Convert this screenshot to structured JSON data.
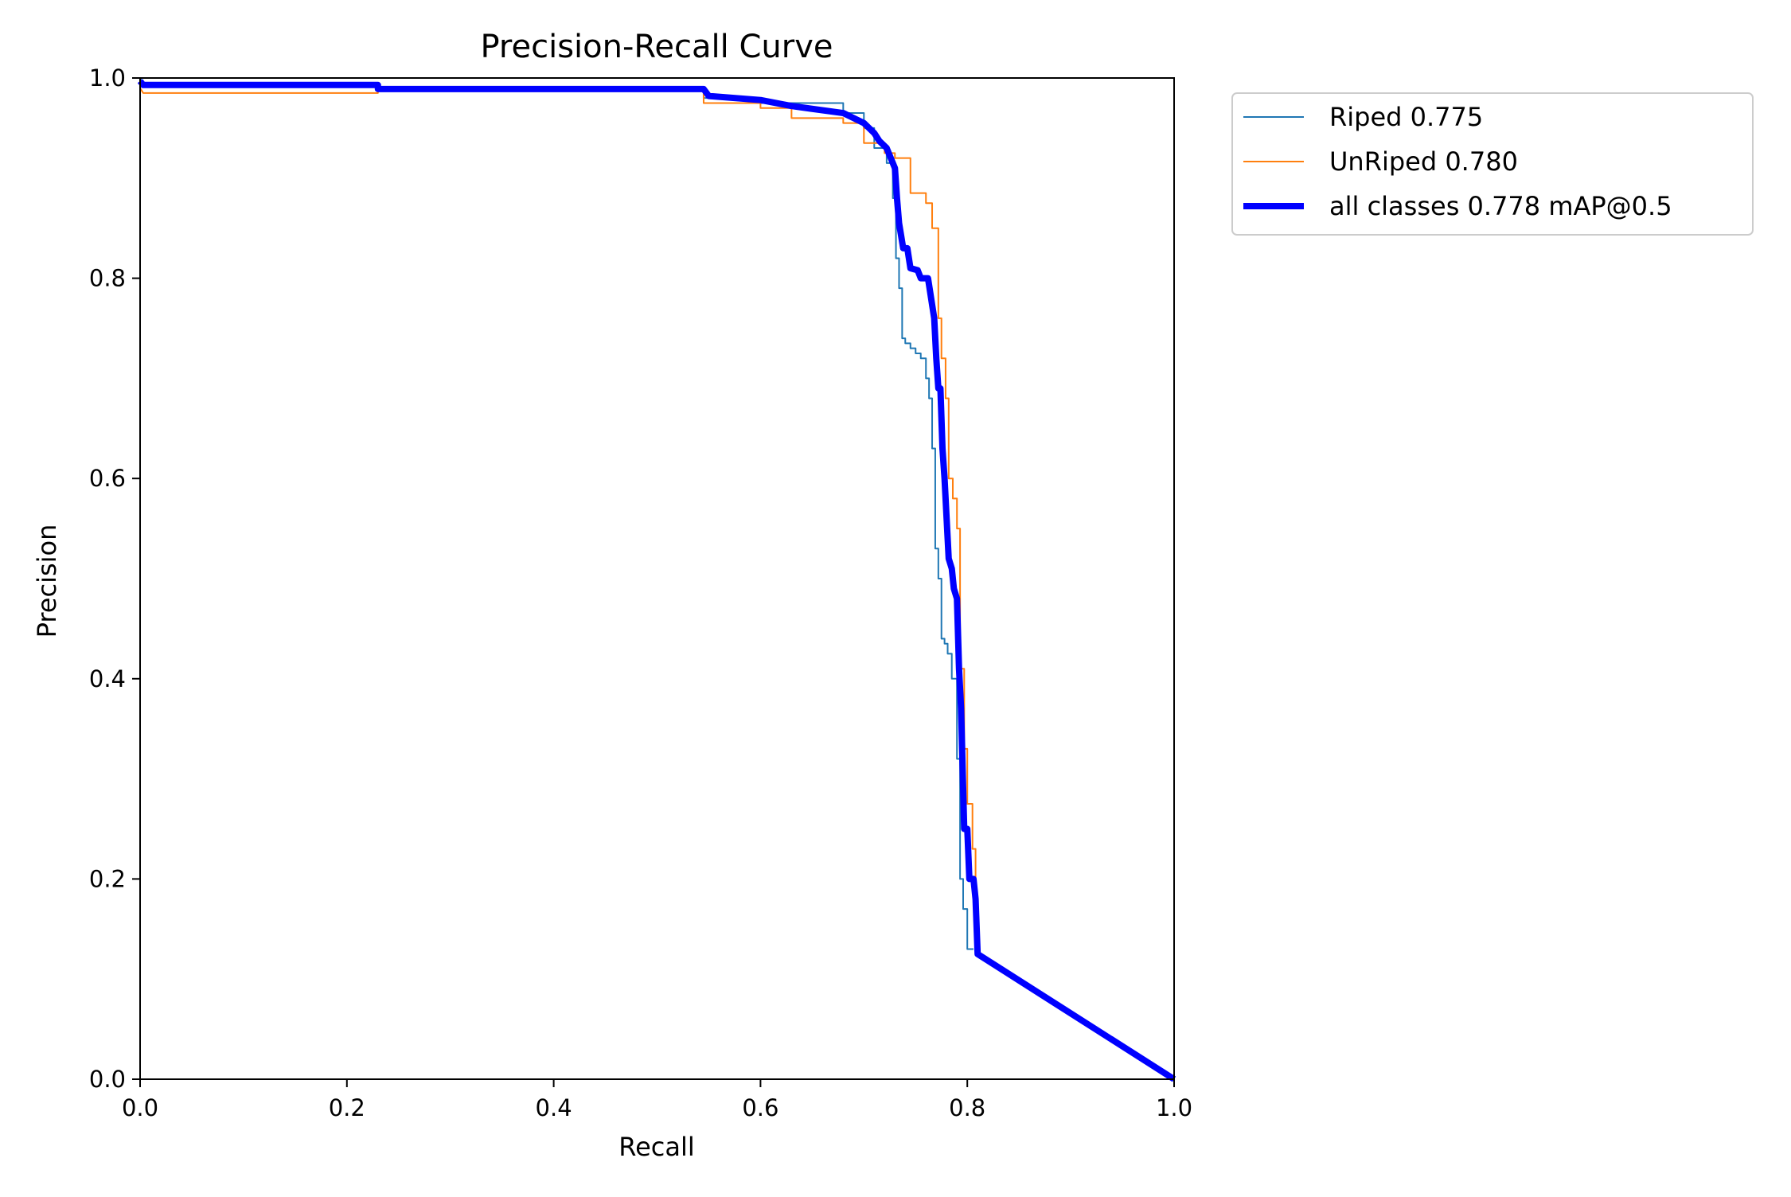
{
  "chart_data": {
    "type": "line",
    "title": "Precision-Recall Curve",
    "xlabel": "Recall",
    "ylabel": "Precision",
    "xlim": [
      0,
      1
    ],
    "ylim": [
      0,
      1
    ],
    "x_ticks": [
      "0.0",
      "0.2",
      "0.4",
      "0.6",
      "0.8",
      "1.0"
    ],
    "y_ticks": [
      "0.0",
      "0.2",
      "0.4",
      "0.6",
      "0.8",
      "1.0"
    ],
    "grid": false,
    "legend_position": "outside-top-right",
    "series": [
      {
        "name": "Riped 0.775",
        "color": "#1f77b4",
        "style": "step",
        "points": [
          [
            0.0,
            1.0
          ],
          [
            0.003,
            0.995
          ],
          [
            0.23,
            0.995
          ],
          [
            0.23,
            0.99
          ],
          [
            0.545,
            0.99
          ],
          [
            0.545,
            0.98
          ],
          [
            0.6,
            0.98
          ],
          [
            0.6,
            0.975
          ],
          [
            0.68,
            0.975
          ],
          [
            0.68,
            0.965
          ],
          [
            0.7,
            0.965
          ],
          [
            0.7,
            0.95
          ],
          [
            0.71,
            0.95
          ],
          [
            0.71,
            0.93
          ],
          [
            0.722,
            0.93
          ],
          [
            0.722,
            0.915
          ],
          [
            0.728,
            0.915
          ],
          [
            0.728,
            0.88
          ],
          [
            0.731,
            0.88
          ],
          [
            0.731,
            0.82
          ],
          [
            0.734,
            0.82
          ],
          [
            0.734,
            0.79
          ],
          [
            0.737,
            0.79
          ],
          [
            0.737,
            0.74
          ],
          [
            0.74,
            0.74
          ],
          [
            0.74,
            0.735
          ],
          [
            0.745,
            0.735
          ],
          [
            0.745,
            0.73
          ],
          [
            0.75,
            0.73
          ],
          [
            0.75,
            0.725
          ],
          [
            0.755,
            0.725
          ],
          [
            0.755,
            0.72
          ],
          [
            0.76,
            0.72
          ],
          [
            0.76,
            0.7
          ],
          [
            0.763,
            0.7
          ],
          [
            0.763,
            0.68
          ],
          [
            0.766,
            0.68
          ],
          [
            0.766,
            0.63
          ],
          [
            0.769,
            0.63
          ],
          [
            0.769,
            0.53
          ],
          [
            0.772,
            0.53
          ],
          [
            0.772,
            0.5
          ],
          [
            0.775,
            0.5
          ],
          [
            0.775,
            0.44
          ],
          [
            0.778,
            0.44
          ],
          [
            0.778,
            0.435
          ],
          [
            0.781,
            0.435
          ],
          [
            0.781,
            0.425
          ],
          [
            0.785,
            0.425
          ],
          [
            0.785,
            0.4
          ],
          [
            0.79,
            0.4
          ],
          [
            0.79,
            0.32
          ],
          [
            0.793,
            0.32
          ],
          [
            0.793,
            0.2
          ],
          [
            0.796,
            0.2
          ],
          [
            0.796,
            0.17
          ],
          [
            0.8,
            0.17
          ],
          [
            0.8,
            0.13
          ],
          [
            0.806,
            0.13
          ]
        ]
      },
      {
        "name": "UnRiped 0.780",
        "color": "#ff7f0e",
        "style": "step",
        "points": [
          [
            0.0,
            0.99
          ],
          [
            0.003,
            0.985
          ],
          [
            0.23,
            0.985
          ],
          [
            0.23,
            0.99
          ],
          [
            0.37,
            0.99
          ],
          [
            0.37,
            0.988
          ],
          [
            0.545,
            0.988
          ],
          [
            0.545,
            0.975
          ],
          [
            0.6,
            0.975
          ],
          [
            0.6,
            0.97
          ],
          [
            0.63,
            0.97
          ],
          [
            0.63,
            0.96
          ],
          [
            0.68,
            0.96
          ],
          [
            0.68,
            0.955
          ],
          [
            0.7,
            0.955
          ],
          [
            0.7,
            0.935
          ],
          [
            0.72,
            0.935
          ],
          [
            0.72,
            0.925
          ],
          [
            0.73,
            0.925
          ],
          [
            0.73,
            0.92
          ],
          [
            0.745,
            0.92
          ],
          [
            0.745,
            0.885
          ],
          [
            0.76,
            0.885
          ],
          [
            0.76,
            0.875
          ],
          [
            0.766,
            0.875
          ],
          [
            0.766,
            0.85
          ],
          [
            0.772,
            0.85
          ],
          [
            0.772,
            0.76
          ],
          [
            0.775,
            0.76
          ],
          [
            0.775,
            0.72
          ],
          [
            0.779,
            0.72
          ],
          [
            0.779,
            0.68
          ],
          [
            0.782,
            0.68
          ],
          [
            0.782,
            0.6
          ],
          [
            0.786,
            0.6
          ],
          [
            0.786,
            0.58
          ],
          [
            0.79,
            0.58
          ],
          [
            0.79,
            0.55
          ],
          [
            0.793,
            0.55
          ],
          [
            0.793,
            0.41
          ],
          [
            0.797,
            0.41
          ],
          [
            0.797,
            0.33
          ],
          [
            0.8,
            0.33
          ],
          [
            0.8,
            0.275
          ],
          [
            0.805,
            0.275
          ],
          [
            0.805,
            0.23
          ],
          [
            0.808,
            0.23
          ],
          [
            0.808,
            0.125
          ],
          [
            0.812,
            0.125
          ],
          [
            1.0,
            0.0
          ]
        ]
      },
      {
        "name": "all classes 0.778 mAP@0.5",
        "color": "#0000ff",
        "style": "line",
        "points": [
          [
            0.0,
            0.997
          ],
          [
            0.003,
            0.993
          ],
          [
            0.23,
            0.993
          ],
          [
            0.23,
            0.989
          ],
          [
            0.37,
            0.989
          ],
          [
            0.545,
            0.989
          ],
          [
            0.55,
            0.982
          ],
          [
            0.6,
            0.978
          ],
          [
            0.63,
            0.972
          ],
          [
            0.68,
            0.965
          ],
          [
            0.69,
            0.96
          ],
          [
            0.7,
            0.955
          ],
          [
            0.71,
            0.945
          ],
          [
            0.715,
            0.937
          ],
          [
            0.722,
            0.93
          ],
          [
            0.726,
            0.92
          ],
          [
            0.73,
            0.91
          ],
          [
            0.732,
            0.88
          ],
          [
            0.734,
            0.855
          ],
          [
            0.738,
            0.83
          ],
          [
            0.742,
            0.83
          ],
          [
            0.745,
            0.81
          ],
          [
            0.752,
            0.808
          ],
          [
            0.755,
            0.8
          ],
          [
            0.762,
            0.8
          ],
          [
            0.765,
            0.78
          ],
          [
            0.768,
            0.76
          ],
          [
            0.77,
            0.72
          ],
          [
            0.772,
            0.69
          ],
          [
            0.774,
            0.69
          ],
          [
            0.776,
            0.63
          ],
          [
            0.778,
            0.6
          ],
          [
            0.78,
            0.56
          ],
          [
            0.782,
            0.52
          ],
          [
            0.785,
            0.51
          ],
          [
            0.787,
            0.49
          ],
          [
            0.79,
            0.48
          ],
          [
            0.792,
            0.41
          ],
          [
            0.794,
            0.37
          ],
          [
            0.795,
            0.33
          ],
          [
            0.797,
            0.25
          ],
          [
            0.8,
            0.25
          ],
          [
            0.802,
            0.2
          ],
          [
            0.806,
            0.2
          ],
          [
            0.808,
            0.18
          ],
          [
            0.81,
            0.125
          ],
          [
            1.0,
            0.0
          ]
        ]
      }
    ]
  }
}
